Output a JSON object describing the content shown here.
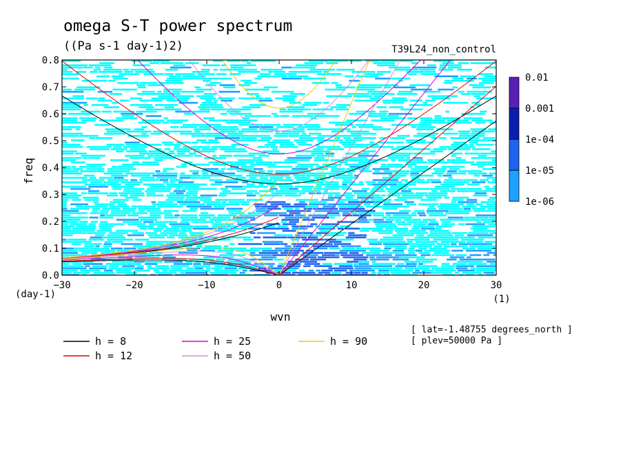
{
  "title": "omega S-T power spectrum",
  "subtitle": "((Pa s-1 day-1)2)",
  "run_label": "T39L24_non_control",
  "info": [
    "[ lat=-1.48755 degrees_north ]",
    "[ plev=50000 Pa ]"
  ],
  "chart_data": {
    "type": "heatmap",
    "xlabel": "wvn",
    "ylabel": "freq",
    "x_unit": "(1)",
    "y_unit": "(day-1)",
    "xlim": [
      -30,
      30
    ],
    "ylim": [
      0,
      0.8
    ],
    "x_ticks": [
      "-30",
      "-20",
      "-10",
      "0",
      "10",
      "20",
      "30"
    ],
    "y_ticks": [
      "0.0",
      "0.1",
      "0.2",
      "0.3",
      "0.4",
      "0.5",
      "0.6",
      "0.7",
      "0.8"
    ],
    "colorbar": {
      "levels": [
        "0.01",
        "0.001",
        "1e-04",
        "1e-05",
        "1e-06"
      ],
      "colors": [
        "#5a1fb4",
        "#0a1fb0",
        "#1e64f0",
        "#1ea0ff",
        "#00ffff"
      ]
    },
    "dispersion_curves": [
      {
        "label": "h =  8",
        "h": 8,
        "color": "#000000"
      },
      {
        "label": "h = 12",
        "h": 12,
        "color": "#e00000"
      },
      {
        "label": "h = 25",
        "h": 25,
        "color": "#d400c8"
      },
      {
        "label": "h = 50",
        "h": 50,
        "color": "#dc8cdc"
      },
      {
        "label": "h = 90",
        "h": 90,
        "color": "#f0c800"
      }
    ]
  }
}
